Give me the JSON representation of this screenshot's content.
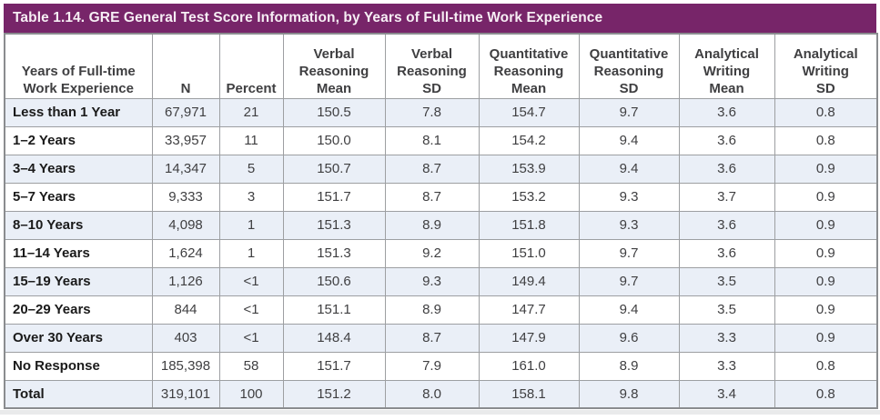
{
  "title_bar": {
    "title": "Table 1.14. GRE General Test Score Information, by Years of Full-time Work Experience"
  },
  "table": {
    "columns": [
      "Years of Full-time\nWork Experience",
      "N",
      "Percent",
      "Verbal\nReasoning\nMean",
      "Verbal\nReasoning\nSD",
      "Quantitative\nReasoning\nMean",
      "Quantitative\nReasoning\nSD",
      "Analytical\nWriting\nMean",
      "Analytical\nWriting\nSD"
    ],
    "rows": [
      {
        "label": "Less than 1 Year",
        "values": [
          "67,971",
          "21",
          "150.5",
          "7.8",
          "154.7",
          "9.7",
          "3.6",
          "0.8"
        ]
      },
      {
        "label": "1–2 Years",
        "values": [
          "33,957",
          "11",
          "150.0",
          "8.1",
          "154.2",
          "9.4",
          "3.6",
          "0.8"
        ]
      },
      {
        "label": "3–4 Years",
        "values": [
          "14,347",
          "5",
          "150.7",
          "8.7",
          "153.9",
          "9.4",
          "3.6",
          "0.9"
        ]
      },
      {
        "label": "5–7 Years",
        "values": [
          "9,333",
          "3",
          "151.7",
          "8.7",
          "153.2",
          "9.3",
          "3.7",
          "0.9"
        ]
      },
      {
        "label": "8–10 Years",
        "values": [
          "4,098",
          "1",
          "151.3",
          "8.9",
          "151.8",
          "9.3",
          "3.6",
          "0.9"
        ]
      },
      {
        "label": "11–14 Years",
        "values": [
          "1,624",
          "1",
          "151.3",
          "9.2",
          "151.0",
          "9.7",
          "3.6",
          "0.9"
        ]
      },
      {
        "label": "15–19 Years",
        "values": [
          "1,126",
          "<1",
          "150.6",
          "9.3",
          "149.4",
          "9.7",
          "3.5",
          "0.9"
        ]
      },
      {
        "label": "20–29 Years",
        "values": [
          "844",
          "<1",
          "151.1",
          "8.9",
          "147.7",
          "9.4",
          "3.5",
          "0.9"
        ]
      },
      {
        "label": "Over 30 Years",
        "values": [
          "403",
          "<1",
          "148.4",
          "8.7",
          "147.9",
          "9.6",
          "3.3",
          "0.9"
        ]
      },
      {
        "label": "No Response",
        "values": [
          "185,398",
          "58",
          "151.7",
          "7.9",
          "161.0",
          "8.9",
          "3.3",
          "0.8"
        ]
      },
      {
        "label": "Total",
        "values": [
          "319,101",
          "100",
          "151.2",
          "8.0",
          "158.1",
          "9.8",
          "3.4",
          "0.8"
        ]
      }
    ]
  },
  "colors": {
    "title_bar_background": "#772569",
    "title_bar_text": "#f6eef4",
    "shaded_row_background": "#eaeff7",
    "grid_line": "#9d9fa2",
    "label_text": "#1a1a1a",
    "value_text": "#3f3f41"
  }
}
